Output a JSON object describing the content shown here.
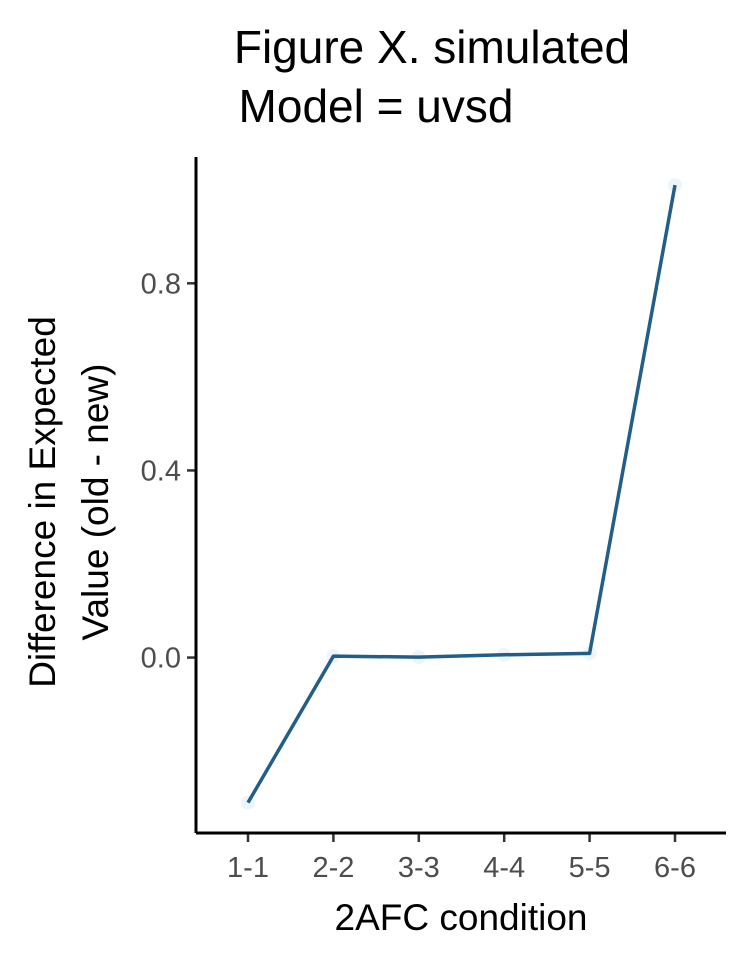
{
  "chart_data": {
    "type": "line",
    "title_lines": [
      "Figure X. simulated",
      "Model = uvsd"
    ],
    "xlabel": "2AFC condition",
    "ylabel_lines": [
      "Difference in Expected",
      "Value (old - new)"
    ],
    "categories": [
      "1-1",
      "2-2",
      "3-3",
      "4-4",
      "5-5",
      "6-6"
    ],
    "series": [
      {
        "values": [
          -0.31,
          0.003,
          0.001,
          0.006,
          0.009,
          1.01
        ]
      }
    ],
    "yticks": [
      0.0,
      0.4,
      0.8
    ],
    "ytick_labels": [
      "0.0",
      "0.4",
      "0.8"
    ],
    "ylim": [
      -0.375,
      1.07
    ],
    "grid": false,
    "legend": "none",
    "line_color": "#225e86"
  }
}
